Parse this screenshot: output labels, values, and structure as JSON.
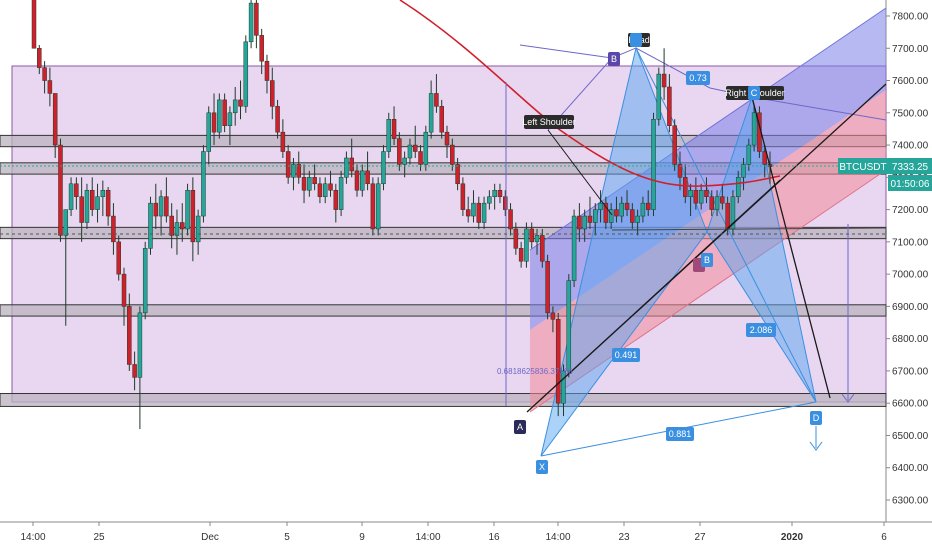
{
  "chart_data": {
    "type": "candlestick",
    "symbol": "BTCUSDT",
    "last_price": "7333.25",
    "countdown": "01:50:06",
    "ylim": [
      6230,
      7860
    ],
    "y_ticks": [
      "7800.00",
      "7700.00",
      "7600.00",
      "7500.00",
      "7400.00",
      "7300.00",
      "7200.00",
      "7100.00",
      "7000.00",
      "6900.00",
      "6800.00",
      "6700.00",
      "6600.00",
      "6500.00",
      "6400.00",
      "6300.00"
    ],
    "x_ticks": [
      "14:00",
      "25",
      "Dec",
      "5",
      "9",
      "14:00",
      "16",
      "14:00",
      "23",
      "27",
      "2020",
      "6"
    ],
    "labels": {
      "left_shoulder": "Left Shoulder",
      "head": "Head",
      "right_shoulder": "Right Shoulder",
      "pt_x": "X",
      "pt_a": "A",
      "pt_b": "B",
      "pt_c": "C",
      "pt_d": "D",
      "pt_b2": "B",
      "ratio_073": "0.73",
      "ratio_0491": "0.491",
      "ratio_2086": "2.086",
      "ratio_0881": "0.881",
      "fib_text": "0.6818625836.37166"
    },
    "zones_price": [
      {
        "lo": 7395,
        "hi": 7430
      },
      {
        "lo": 7310,
        "hi": 7345
      },
      {
        "lo": 7110,
        "hi": 7145
      },
      {
        "lo": 6870,
        "hi": 6905
      },
      {
        "lo": 6590,
        "hi": 6630
      }
    ],
    "candles": [
      [
        7880,
        7880,
        7700,
        7700
      ],
      [
        7700,
        7710,
        7620,
        7640
      ],
      [
        7640,
        7660,
        7560,
        7600
      ],
      [
        7600,
        7640,
        7520,
        7560
      ],
      [
        7560,
        7560,
        7360,
        7400
      ],
      [
        7400,
        7420,
        7100,
        7120
      ],
      [
        7120,
        7200,
        6840,
        7200
      ],
      [
        7200,
        7300,
        7180,
        7280
      ],
      [
        7280,
        7300,
        7200,
        7240
      ],
      [
        7240,
        7300,
        7100,
        7160
      ],
      [
        7160,
        7280,
        7140,
        7260
      ],
      [
        7260,
        7300,
        7180,
        7200
      ],
      [
        7200,
        7280,
        7160,
        7240
      ],
      [
        7240,
        7290,
        7180,
        7260
      ],
      [
        7260,
        7270,
        7150,
        7180
      ],
      [
        7180,
        7220,
        7060,
        7100
      ],
      [
        7100,
        7120,
        6980,
        7000
      ],
      [
        7000,
        7020,
        6840,
        6900
      ],
      [
        6900,
        6940,
        6700,
        6720
      ],
      [
        6720,
        6760,
        6640,
        6680
      ],
      [
        6680,
        6900,
        6520,
        6880
      ],
      [
        6880,
        7100,
        6860,
        7080
      ],
      [
        7080,
        7240,
        7060,
        7220
      ],
      [
        7220,
        7280,
        7140,
        7180
      ],
      [
        7180,
        7260,
        7120,
        7240
      ],
      [
        7240,
        7300,
        7160,
        7180
      ],
      [
        7180,
        7220,
        7080,
        7120
      ],
      [
        7120,
        7200,
        7060,
        7160
      ],
      [
        7160,
        7220,
        7100,
        7140
      ],
      [
        7140,
        7280,
        7120,
        7260
      ],
      [
        7260,
        7300,
        7040,
        7100
      ],
      [
        7100,
        7200,
        7060,
        7180
      ],
      [
        7180,
        7400,
        7160,
        7380
      ],
      [
        7380,
        7520,
        7340,
        7500
      ],
      [
        7500,
        7560,
        7400,
        7440
      ],
      [
        7440,
        7560,
        7420,
        7540
      ],
      [
        7540,
        7560,
        7440,
        7460
      ],
      [
        7460,
        7520,
        7400,
        7500
      ],
      [
        7500,
        7580,
        7460,
        7540
      ],
      [
        7540,
        7600,
        7480,
        7520
      ],
      [
        7520,
        7740,
        7500,
        7720
      ],
      [
        7720,
        7860,
        7700,
        7840
      ],
      [
        7840,
        7860,
        7700,
        7740
      ],
      [
        7740,
        7760,
        7620,
        7660
      ],
      [
        7660,
        7680,
        7560,
        7600
      ],
      [
        7600,
        7640,
        7480,
        7520
      ],
      [
        7520,
        7540,
        7420,
        7440
      ],
      [
        7440,
        7480,
        7360,
        7380
      ],
      [
        7380,
        7400,
        7280,
        7300
      ],
      [
        7300,
        7360,
        7260,
        7340
      ],
      [
        7340,
        7380,
        7280,
        7300
      ],
      [
        7300,
        7340,
        7220,
        7260
      ],
      [
        7260,
        7320,
        7240,
        7300
      ],
      [
        7300,
        7340,
        7260,
        7280
      ],
      [
        7280,
        7300,
        7220,
        7240
      ],
      [
        7240,
        7300,
        7220,
        7280
      ],
      [
        7280,
        7320,
        7240,
        7260
      ],
      [
        7260,
        7280,
        7160,
        7200
      ],
      [
        7200,
        7320,
        7180,
        7300
      ],
      [
        7300,
        7380,
        7280,
        7360
      ],
      [
        7360,
        7420,
        7300,
        7320
      ],
      [
        7320,
        7340,
        7240,
        7260
      ],
      [
        7260,
        7340,
        7240,
        7320
      ],
      [
        7320,
        7380,
        7260,
        7280
      ],
      [
        7280,
        7300,
        7120,
        7140
      ],
      [
        7140,
        7300,
        7120,
        7280
      ],
      [
        7280,
        7400,
        7260,
        7380
      ],
      [
        7380,
        7500,
        7360,
        7480
      ],
      [
        7480,
        7520,
        7400,
        7420
      ],
      [
        7420,
        7440,
        7320,
        7340
      ],
      [
        7340,
        7380,
        7300,
        7360
      ],
      [
        7360,
        7420,
        7340,
        7400
      ],
      [
        7400,
        7460,
        7360,
        7380
      ],
      [
        7380,
        7400,
        7320,
        7340
      ],
      [
        7340,
        7460,
        7320,
        7440
      ],
      [
        7440,
        7600,
        7420,
        7560
      ],
      [
        7560,
        7620,
        7500,
        7520
      ],
      [
        7520,
        7540,
        7420,
        7440
      ],
      [
        7440,
        7460,
        7360,
        7400
      ],
      [
        7400,
        7420,
        7320,
        7340
      ],
      [
        7340,
        7360,
        7260,
        7280
      ],
      [
        7280,
        7300,
        7180,
        7200
      ],
      [
        7200,
        7240,
        7160,
        7180
      ],
      [
        7180,
        7260,
        7160,
        7220
      ],
      [
        7220,
        7240,
        7140,
        7160
      ],
      [
        7160,
        7240,
        7140,
        7220
      ],
      [
        7220,
        7260,
        7200,
        7240
      ],
      [
        7240,
        7280,
        7200,
        7260
      ],
      [
        7260,
        7280,
        7220,
        7240
      ],
      [
        7240,
        7260,
        7180,
        7200
      ],
      [
        7200,
        7220,
        7120,
        7140
      ],
      [
        7140,
        7160,
        7060,
        7080
      ],
      [
        7080,
        7100,
        7020,
        7040
      ],
      [
        7040,
        7160,
        7020,
        7140
      ],
      [
        7140,
        7160,
        7080,
        7100
      ],
      [
        7100,
        7140,
        7060,
        7120
      ],
      [
        7120,
        7140,
        7020,
        7040
      ],
      [
        7040,
        7060,
        6860,
        6880
      ],
      [
        6880,
        6900,
        6820,
        6860
      ],
      [
        6860,
        6880,
        6560,
        6600
      ],
      [
        6600,
        6720,
        6560,
        6700
      ],
      [
        6700,
        7000,
        6680,
        6980
      ],
      [
        6980,
        7200,
        6960,
        7180
      ],
      [
        7180,
        7220,
        7100,
        7140
      ],
      [
        7140,
        7200,
        7100,
        7180
      ],
      [
        7180,
        7240,
        7140,
        7160
      ],
      [
        7160,
        7220,
        7120,
        7200
      ],
      [
        7200,
        7260,
        7160,
        7220
      ],
      [
        7220,
        7240,
        7140,
        7160
      ],
      [
        7160,
        7220,
        7140,
        7200
      ],
      [
        7200,
        7240,
        7160,
        7180
      ],
      [
        7180,
        7240,
        7160,
        7220
      ],
      [
        7220,
        7260,
        7180,
        7200
      ],
      [
        7200,
        7220,
        7140,
        7160
      ],
      [
        7160,
        7200,
        7120,
        7180
      ],
      [
        7180,
        7240,
        7160,
        7220
      ],
      [
        7220,
        7260,
        7180,
        7200
      ],
      [
        7200,
        7500,
        7180,
        7480
      ],
      [
        7480,
        7640,
        7460,
        7620
      ],
      [
        7620,
        7700,
        7540,
        7580
      ],
      [
        7580,
        7620,
        7440,
        7460
      ],
      [
        7460,
        7480,
        7320,
        7340
      ],
      [
        7340,
        7380,
        7260,
        7300
      ],
      [
        7300,
        7340,
        7220,
        7240
      ],
      [
        7240,
        7280,
        7180,
        7260
      ],
      [
        7260,
        7300,
        7200,
        7220
      ],
      [
        7220,
        7280,
        7200,
        7260
      ],
      [
        7260,
        7300,
        7220,
        7240
      ],
      [
        7240,
        7260,
        7180,
        7200
      ],
      [
        7200,
        7260,
        7180,
        7240
      ],
      [
        7240,
        7280,
        7200,
        7220
      ],
      [
        7220,
        7240,
        7120,
        7140
      ],
      [
        7140,
        7260,
        7120,
        7240
      ],
      [
        7240,
        7320,
        7220,
        7300
      ],
      [
        7300,
        7360,
        7260,
        7340
      ],
      [
        7340,
        7420,
        7320,
        7400
      ],
      [
        7400,
        7520,
        7380,
        7500
      ],
      [
        7500,
        7520,
        7360,
        7380
      ],
      [
        7380,
        7400,
        7300,
        7340
      ],
      [
        7340,
        7380,
        7280,
        7333
      ]
    ]
  }
}
